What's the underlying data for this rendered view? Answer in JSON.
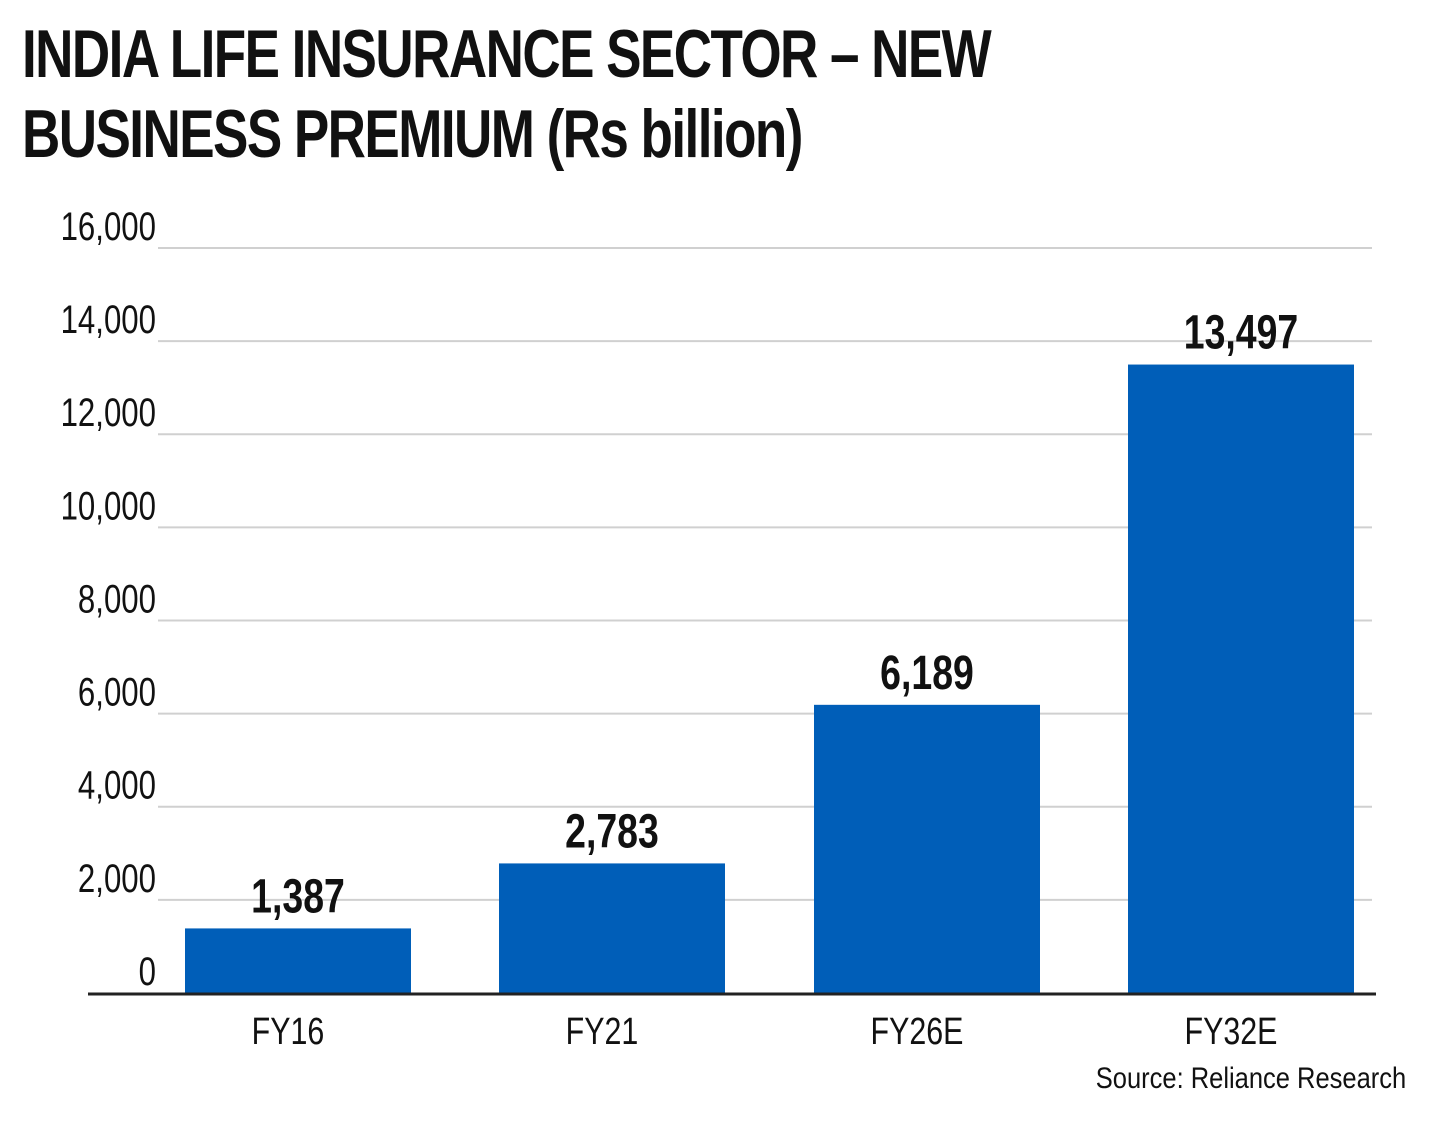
{
  "title": "INDIA LIFE INSURANCE SECTOR – NEW BUSINESS PREMIUM (Rs billion)",
  "source": "Source: Reliance Research",
  "colors": {
    "bar": "#005eb8",
    "grid": "#d0d0d0",
    "axis": "#222222",
    "text": "#111111"
  },
  "chart_data": {
    "type": "bar",
    "title": "INDIA LIFE INSURANCE SECTOR – NEW BUSINESS PREMIUM (Rs billion)",
    "categories": [
      "FY16",
      "FY21",
      "FY26E",
      "FY32E"
    ],
    "values": [
      1387,
      2783,
      6189,
      13497
    ],
    "value_labels": [
      "1,387",
      "2,783",
      "6,189",
      "13,497"
    ],
    "y_ticks": [
      0,
      2000,
      4000,
      6000,
      8000,
      10000,
      12000,
      14000,
      16000
    ],
    "y_tick_labels": [
      "0",
      "2,000",
      "4,000",
      "6,000",
      "8,000",
      "10,000",
      "12,000",
      "14,000",
      "16,000"
    ],
    "xlabel": "",
    "ylabel": "",
    "ylim": [
      0,
      16000
    ],
    "grid": true,
    "legend": "none"
  }
}
